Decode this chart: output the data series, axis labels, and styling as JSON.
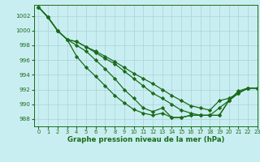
{
  "title": "Graphe pression niveau de la mer (hPa)",
  "bg_color": "#c9eef1",
  "grid_color": "#a8d4d8",
  "line_color": "#1a6b1a",
  "marker": "D",
  "markersize": 2.2,
  "linewidth": 0.9,
  "xlim": [
    -0.5,
    23
  ],
  "ylim": [
    987.0,
    1003.5
  ],
  "yticks": [
    988,
    990,
    992,
    994,
    996,
    998,
    1000,
    1002
  ],
  "xticks": [
    0,
    1,
    2,
    3,
    4,
    5,
    6,
    7,
    8,
    9,
    10,
    11,
    12,
    13,
    14,
    15,
    16,
    17,
    18,
    19,
    20,
    21,
    22,
    23
  ],
  "series": [
    [
      1003.2,
      1001.8,
      1000.0,
      998.8,
      996.5,
      995.0,
      993.8,
      992.5,
      991.2,
      990.2,
      989.3,
      988.8,
      988.5,
      988.8,
      988.2,
      988.2,
      988.5,
      988.5,
      988.5,
      988.5,
      990.5,
      991.8,
      992.2,
      992.2
    ],
    [
      1003.2,
      1001.8,
      1000.0,
      998.8,
      998.5,
      997.8,
      997.2,
      996.5,
      995.8,
      995.0,
      994.2,
      993.5,
      992.8,
      992.0,
      991.2,
      990.5,
      989.8,
      989.5,
      989.2,
      990.5,
      990.8,
      991.5,
      992.2,
      992.2
    ],
    [
      1003.2,
      1001.8,
      1000.0,
      998.8,
      998.5,
      997.8,
      997.0,
      996.2,
      995.5,
      994.5,
      993.5,
      992.5,
      991.5,
      990.8,
      990.0,
      989.2,
      988.8,
      988.5,
      988.5,
      989.5,
      990.5,
      991.5,
      992.2,
      992.2
    ],
    [
      1003.2,
      1001.8,
      1000.0,
      998.8,
      998.0,
      997.2,
      996.0,
      994.8,
      993.5,
      992.0,
      990.8,
      989.5,
      989.0,
      989.5,
      988.2,
      988.2,
      988.5,
      988.5,
      988.5,
      988.5,
      990.5,
      991.5,
      992.2,
      992.2
    ]
  ]
}
